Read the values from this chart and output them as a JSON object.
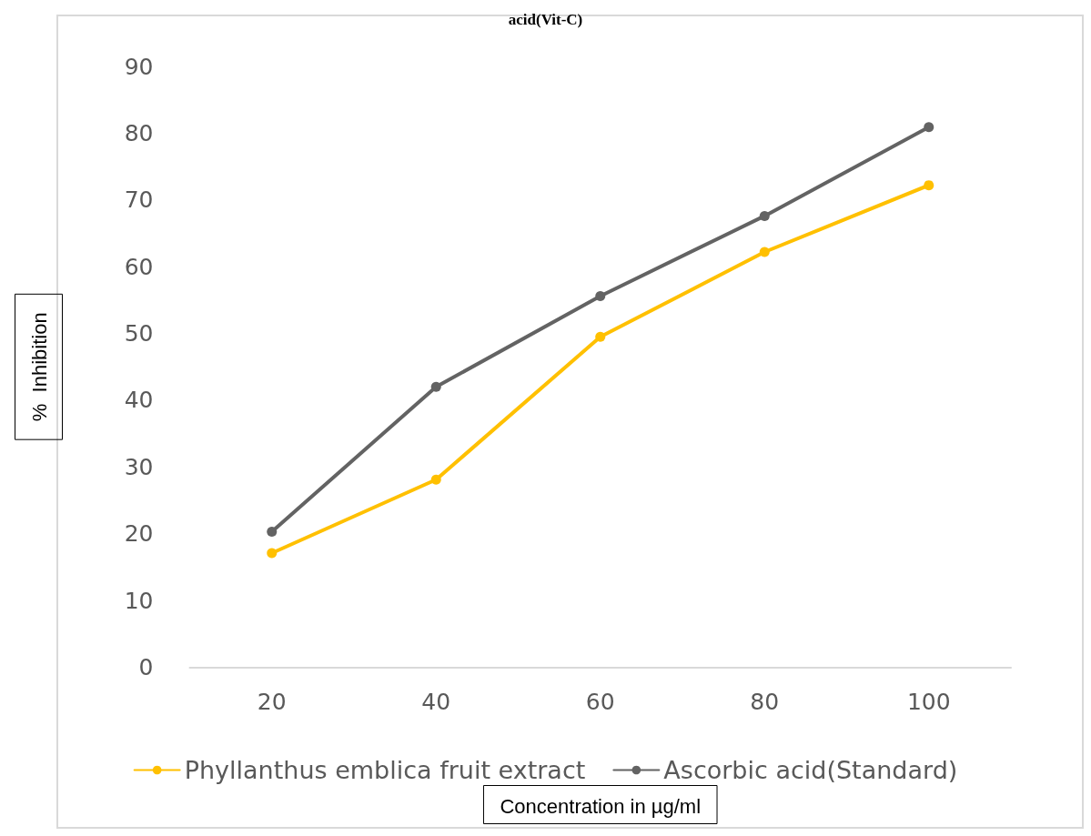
{
  "chart_data": {
    "type": "line",
    "title": "acid(Vit-C)",
    "xlabel": "Concentration in µg/ml",
    "ylabel": "%  Inhibition",
    "categories": [
      "20",
      "40",
      "60",
      "80",
      "100"
    ],
    "series": [
      {
        "name": "Phyllanthus emblica fruit extract",
        "color": "#ffc000",
        "values": [
          17.1,
          28.1,
          49.5,
          62.2,
          72.2
        ]
      },
      {
        "name": "Ascorbic acid(Standard)",
        "color": "#636363",
        "values": [
          20.3,
          42.0,
          55.6,
          67.6,
          80.9
        ]
      }
    ],
    "ylim": [
      0,
      90
    ],
    "yticks": [
      0,
      10,
      20,
      30,
      40,
      50,
      60,
      70,
      80,
      90
    ],
    "grid": false,
    "legend": "bottom",
    "marker": "circle",
    "line_style": "solid"
  }
}
